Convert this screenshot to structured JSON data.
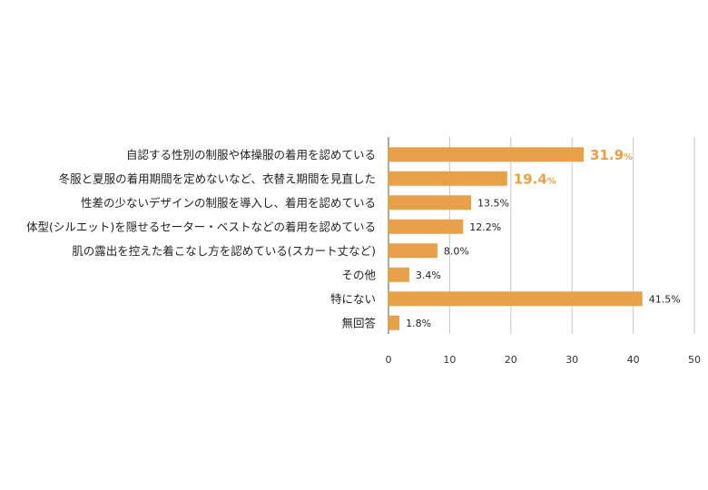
{
  "chart_data": {
    "type": "bar",
    "orientation": "horizontal",
    "categories": [
      "自認する性別の制服や体操服の着用を認めている",
      "冬服と夏服の着用期間を定めないなど、衣替え期間を見直した",
      "性差の少ないデザインの制服を導入し、着用を認めている",
      "体型(シルエット)を隠せるセーター・ベストなどの着用を認めている",
      "肌の露出を控えた着こなし方を認めている(スカート丈など)",
      "その他",
      "特にない",
      "無回答"
    ],
    "values": [
      31.9,
      19.4,
      13.5,
      12.2,
      8.0,
      3.4,
      41.5,
      1.8
    ],
    "value_labels": [
      "31.9",
      "19.4",
      "13.5%",
      "12.2%",
      "8.0%",
      "3.4%",
      "41.5%",
      "1.8%"
    ],
    "highlight": [
      true,
      true,
      false,
      false,
      false,
      false,
      false,
      false
    ],
    "unit": "%",
    "xlim": [
      0,
      50
    ],
    "xticks": [
      0,
      10,
      20,
      30,
      40,
      50
    ],
    "grid": "vertical",
    "colors": {
      "bar": "#E8A04A",
      "highlight_text": "#E8A04A",
      "text": "#222222",
      "grid": "#C8C8C8"
    }
  }
}
